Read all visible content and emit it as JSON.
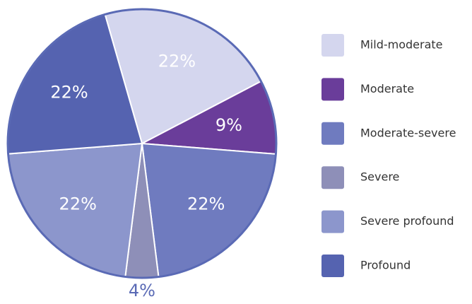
{
  "chart_data": {
    "type": "pie",
    "categories": [
      "Mild-moderate",
      "Moderate",
      "Moderate-severe",
      "Severe",
      "Severe profound",
      "Profound"
    ],
    "values": [
      22,
      9,
      22,
      4,
      22,
      22
    ],
    "value_labels": [
      "22%",
      "9%",
      "22%",
      "4%",
      "22%",
      "22%"
    ],
    "colors": [
      "#d4d6ee",
      "#6a3d9a",
      "#6f7bbf",
      "#8e8fb8",
      "#8c96cc",
      "#5563b0"
    ],
    "legend": "right"
  }
}
